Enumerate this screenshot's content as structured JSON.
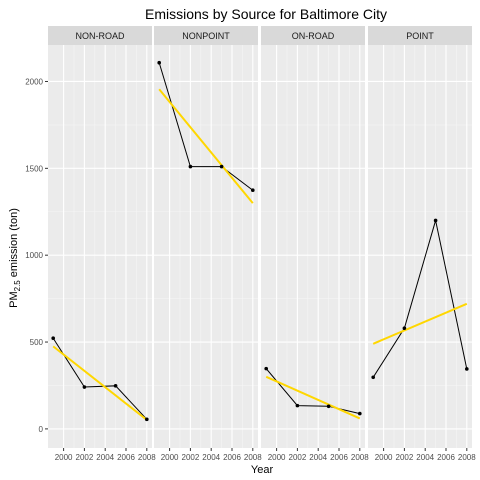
{
  "chart_data": {
    "type": "line",
    "title": "Emissions by Source for Baltimore City",
    "xlabel": "Year",
    "ylabel_prefix": "PM",
    "ylabel_sub": "2.5",
    "ylabel_suffix": " emission (ton)",
    "xlim": [
      1998.5,
      2008.5
    ],
    "ylim": [
      -110,
      2210
    ],
    "yticks": [
      0,
      500,
      1000,
      1500,
      2000
    ],
    "xticks": [
      2000,
      2002,
      2004,
      2006,
      2008
    ],
    "xtick_labels": [
      "2000",
      "2002",
      "2004",
      "2006",
      "2008"
    ],
    "grid": true,
    "line_color": "#000000",
    "trend_color": "#FFD700",
    "panel_bg": "#EBEBEB",
    "strip_bg": "#D9D9D9",
    "panels": [
      {
        "name": "NON-ROAD",
        "x": [
          1999,
          2002,
          2005,
          2008
        ],
        "y": [
          522,
          241,
          248,
          55
        ],
        "trend": [
          [
            1999,
            475
          ],
          [
            2008,
            52
          ]
        ]
      },
      {
        "name": "NONPOINT",
        "x": [
          1999,
          2002,
          2005,
          2008
        ],
        "y": [
          2108,
          1510,
          1510,
          1374
        ],
        "trend": [
          [
            1999,
            1955
          ],
          [
            2008,
            1300
          ]
        ]
      },
      {
        "name": "ON-ROAD",
        "x": [
          1999,
          2002,
          2005,
          2008
        ],
        "y": [
          347,
          134,
          130,
          88
        ],
        "trend": [
          [
            1999,
            300
          ],
          [
            2008,
            60
          ]
        ]
      },
      {
        "name": "POINT",
        "x": [
          1999,
          2002,
          2005,
          2008
        ],
        "y": [
          297,
          580,
          1200,
          345
        ],
        "trend": [
          [
            1999,
            490
          ],
          [
            2008,
            720
          ]
        ]
      }
    ]
  }
}
